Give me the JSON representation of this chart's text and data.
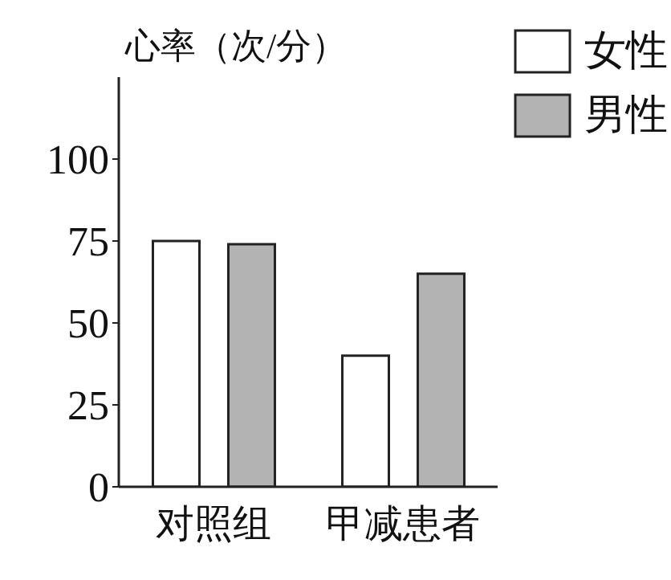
{
  "chart_data": {
    "type": "bar",
    "ylabel": "心率（次/分）",
    "categories": [
      "对照组",
      "甲减患者"
    ],
    "series": [
      {
        "name": "女性",
        "color": "#ffffff",
        "values": [
          75,
          40
        ]
      },
      {
        "name": "男性",
        "color": "#b3b3b3",
        "values": [
          74,
          65
        ]
      }
    ],
    "ylim": [
      0,
      125
    ],
    "yticks": [
      0,
      25,
      50,
      75,
      100
    ],
    "grid": false,
    "legend": "top right"
  }
}
